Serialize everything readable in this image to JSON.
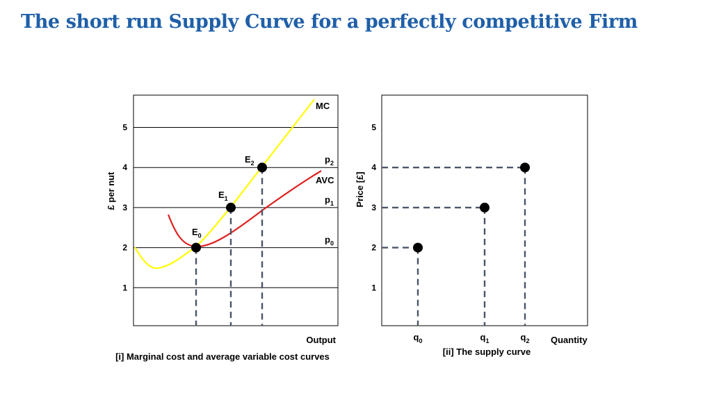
{
  "title": "The short run Supply Curve for a perfectly competitive Firm",
  "colors": {
    "title": "#1f5fa8",
    "mc": "#ffff00",
    "avc": "#e02020",
    "dash": "#4a5568",
    "point": "#000000"
  },
  "chart_data": [
    {
      "type": "line",
      "caption": "[i] Marginal cost and average variable cost curves",
      "xlabel": "Output",
      "ylabel": "£ per nut",
      "y_ticks": [
        "1",
        "2",
        "3",
        "4",
        "5"
      ],
      "grid": true,
      "series": [
        {
          "name": "MC",
          "color": "#ffff00"
        },
        {
          "name": "AVC",
          "color": "#e02020"
        }
      ],
      "price_labels": [
        {
          "main": "p",
          "sub": "2",
          "y": 4
        },
        {
          "main": "p",
          "sub": "1",
          "y": 3
        },
        {
          "main": "p",
          "sub": "0",
          "y": 2
        }
      ],
      "points": [
        {
          "main": "E",
          "sub": "0",
          "y": 2
        },
        {
          "main": "E",
          "sub": "1",
          "y": 3
        },
        {
          "main": "E",
          "sub": "2",
          "y": 4
        }
      ]
    },
    {
      "type": "scatter",
      "caption": "[ii] The supply curve",
      "xlabel": "Quantity",
      "ylabel": "Price [£]",
      "y_ticks": [
        "1",
        "2",
        "3",
        "4",
        "5"
      ],
      "grid": false,
      "points": [
        {
          "main": "q",
          "sub": "0",
          "y": 2
        },
        {
          "main": "q",
          "sub": "1",
          "y": 3
        },
        {
          "main": "q",
          "sub": "2",
          "y": 4
        }
      ]
    }
  ]
}
